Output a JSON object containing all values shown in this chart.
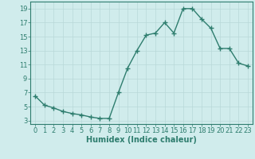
{
  "x": [
    0,
    1,
    2,
    3,
    4,
    5,
    6,
    7,
    8,
    9,
    10,
    11,
    12,
    13,
    14,
    15,
    16,
    17,
    18,
    19,
    20,
    21,
    22,
    23
  ],
  "y": [
    6.5,
    5.2,
    4.8,
    4.3,
    4.0,
    3.8,
    3.5,
    3.3,
    3.3,
    7.0,
    10.5,
    13.0,
    15.2,
    15.5,
    17.0,
    15.5,
    19.0,
    19.0,
    17.5,
    16.2,
    13.3,
    13.3,
    11.2,
    10.8
  ],
  "line_color": "#2e7d6e",
  "marker": "+",
  "marker_size": 4,
  "bg_color": "#d0ecec",
  "grid_color": "#b8d8d8",
  "axis_color": "#2e7d6e",
  "xlabel": "Humidex (Indice chaleur)",
  "ylim": [
    2.5,
    20.0
  ],
  "xlim": [
    -0.5,
    23.5
  ],
  "yticks": [
    3,
    5,
    7,
    9,
    11,
    13,
    15,
    17,
    19
  ],
  "xticks": [
    0,
    1,
    2,
    3,
    4,
    5,
    6,
    7,
    8,
    9,
    10,
    11,
    12,
    13,
    14,
    15,
    16,
    17,
    18,
    19,
    20,
    21,
    22,
    23
  ],
  "xlabel_fontsize": 7,
  "tick_fontsize": 6,
  "line_width": 1.0,
  "marker_color": "#2e7d6e",
  "spine_color": "#2e7d6e",
  "grid_linewidth": 0.5,
  "grid_color_minor": "#c8dede"
}
